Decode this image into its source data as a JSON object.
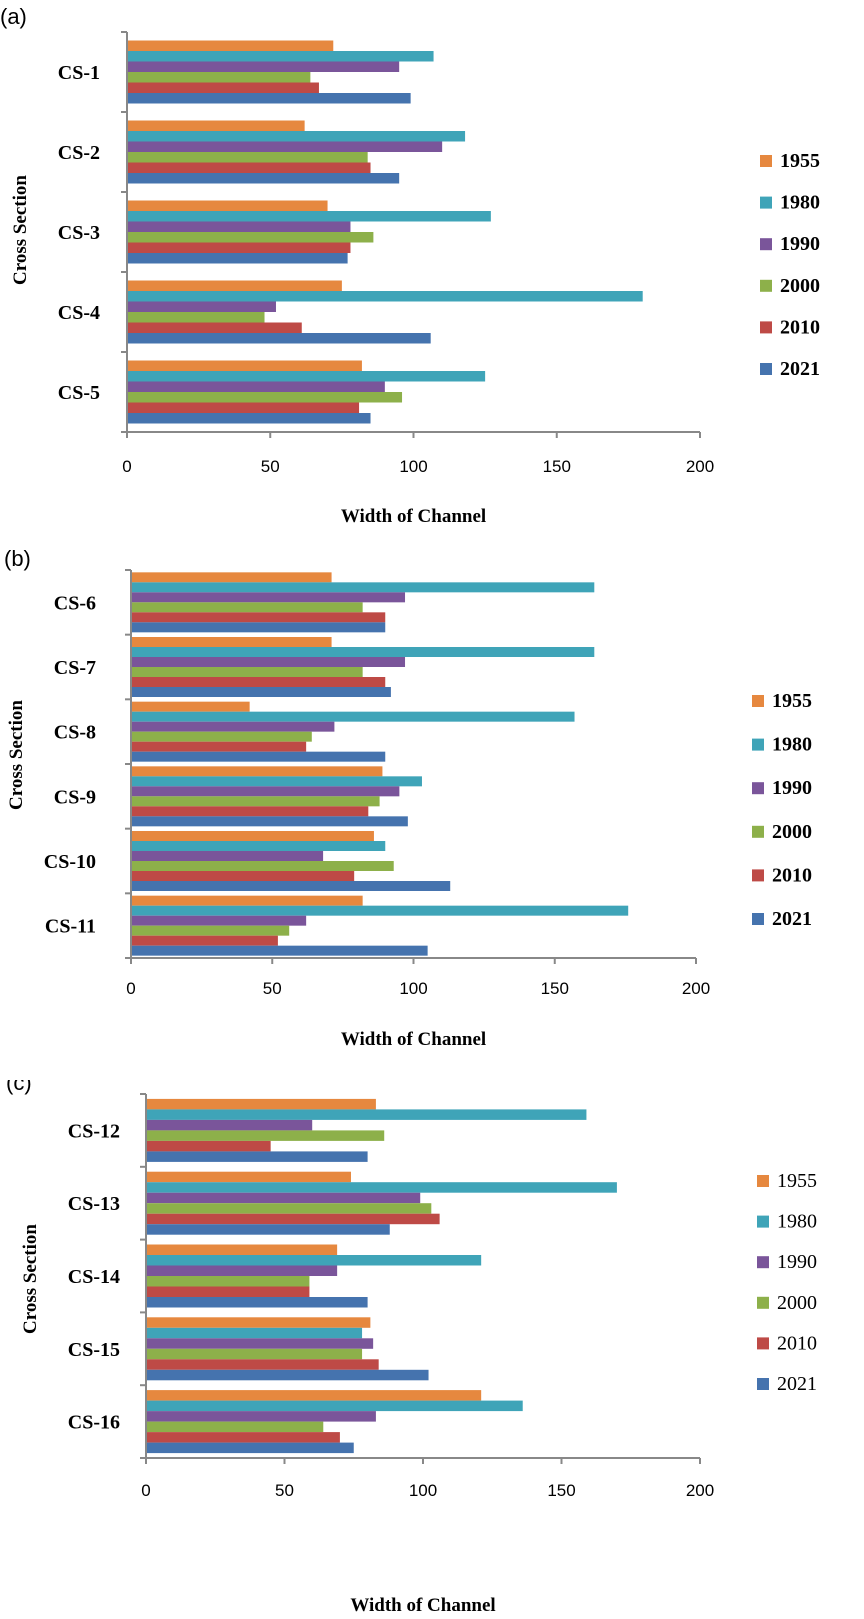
{
  "colors": {
    "1955": "#E6883F",
    "1980": "#3FA4B8",
    "1990": "#7A559A",
    "2000": "#8DB04A",
    "2010": "#BE4A46",
    "2021": "#4573AE",
    "axis": "#888888"
  },
  "chart_data": [
    {
      "type": "bar",
      "orientation": "horizontal",
      "panel_label": "(a)",
      "xlabel": "Width of Channel",
      "ylabel": "Cross Section",
      "xlim": [
        0,
        200
      ],
      "xticks": [
        0,
        50,
        100,
        150,
        200
      ],
      "categories": [
        "CS-1",
        "CS-2",
        "CS-3",
        "CS-4",
        "CS-5"
      ],
      "legend_position": "right",
      "series": [
        {
          "name": "1955",
          "values": [
            72,
            62,
            70,
            75,
            82
          ]
        },
        {
          "name": "1980",
          "values": [
            107,
            118,
            127,
            180,
            125
          ]
        },
        {
          "name": "1990",
          "values": [
            95,
            110,
            78,
            52,
            90
          ]
        },
        {
          "name": "2000",
          "values": [
            64,
            84,
            86,
            48,
            96
          ]
        },
        {
          "name": "2010",
          "values": [
            67,
            85,
            78,
            61,
            81
          ]
        },
        {
          "name": "2021",
          "values": [
            99,
            95,
            77,
            106,
            85
          ]
        }
      ]
    },
    {
      "type": "bar",
      "orientation": "horizontal",
      "panel_label": "(b)",
      "xlabel": "Width of Channel",
      "ylabel": "Cross Section",
      "xlim": [
        0,
        200
      ],
      "xticks": [
        0,
        50,
        100,
        150,
        200
      ],
      "categories": [
        "CS-6",
        "CS-7",
        "CS-8",
        "CS-9",
        "CS-10",
        "CS-11"
      ],
      "legend_position": "right",
      "series": [
        {
          "name": "1955",
          "values": [
            71,
            71,
            42,
            89,
            86,
            82
          ]
        },
        {
          "name": "1980",
          "values": [
            164,
            164,
            157,
            103,
            90,
            176
          ]
        },
        {
          "name": "1990",
          "values": [
            97,
            97,
            72,
            95,
            68,
            62
          ]
        },
        {
          "name": "2000",
          "values": [
            82,
            82,
            64,
            88,
            93,
            56
          ]
        },
        {
          "name": "2010",
          "values": [
            90,
            90,
            62,
            84,
            79,
            52
          ]
        },
        {
          "name": "2021",
          "values": [
            90,
            92,
            90,
            98,
            113,
            105
          ]
        }
      ]
    },
    {
      "type": "bar",
      "orientation": "horizontal",
      "panel_label": "(c)",
      "xlabel": "Width of Channel",
      "ylabel": "Cross  Section",
      "xlim": [
        0,
        200
      ],
      "xticks": [
        0,
        50,
        100,
        150,
        200
      ],
      "categories": [
        "CS-12",
        "CS-13",
        "CS-14",
        "CS-15",
        "CS-16"
      ],
      "legend_position": "right",
      "series": [
        {
          "name": "1955",
          "values": [
            83,
            74,
            69,
            81,
            121
          ]
        },
        {
          "name": "1980",
          "values": [
            159,
            170,
            121,
            78,
            136
          ]
        },
        {
          "name": "1990",
          "values": [
            60,
            99,
            69,
            82,
            83
          ]
        },
        {
          "name": "2000",
          "values": [
            86,
            103,
            59,
            78,
            64
          ]
        },
        {
          "name": "2010",
          "values": [
            45,
            106,
            59,
            84,
            70
          ]
        },
        {
          "name": "2021",
          "values": [
            80,
            88,
            80,
            102,
            75
          ]
        }
      ]
    }
  ]
}
